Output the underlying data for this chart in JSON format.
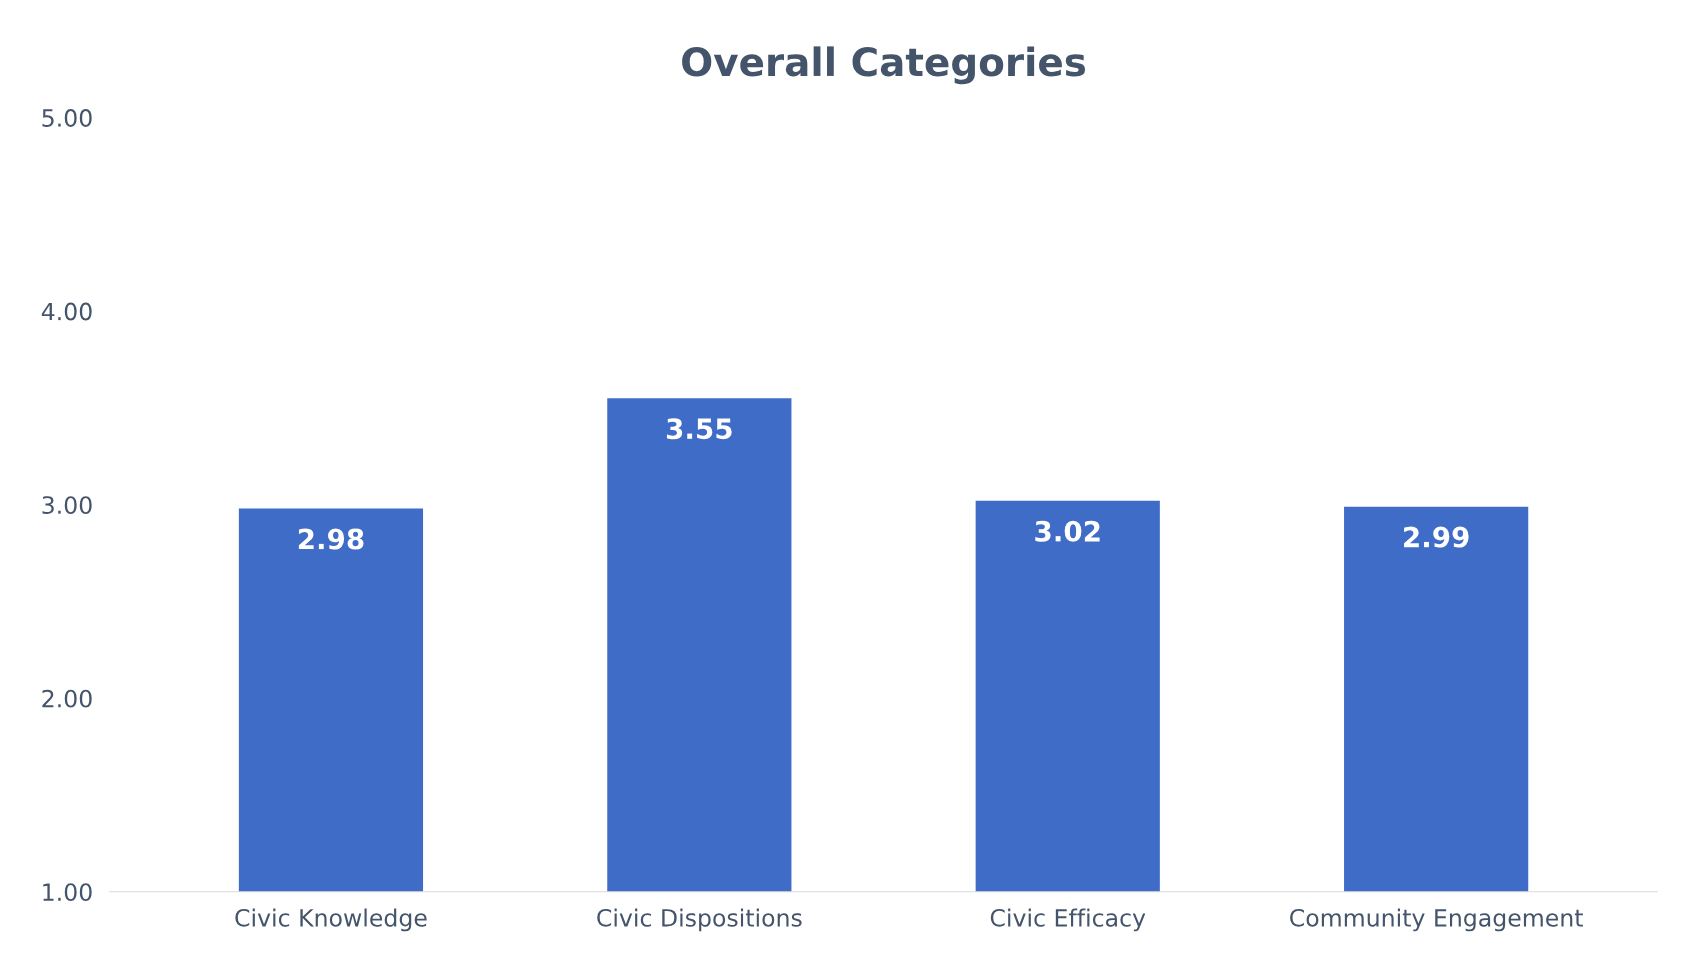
{
  "chart_data": {
    "type": "bar",
    "title": "Overall Categories",
    "categories": [
      "Civic Knowledge",
      "Civic Dispositions",
      "Civic Efficacy",
      "Community Engagement"
    ],
    "values": [
      2.98,
      3.55,
      3.02,
      2.99
    ],
    "color": "#3f6cc6",
    "ylim": [
      1,
      5
    ],
    "yticks": [
      {
        "value": 1,
        "label": "1.00"
      },
      {
        "value": 2,
        "label": "2.00"
      },
      {
        "value": 3,
        "label": "3.00"
      },
      {
        "value": 4,
        "label": "4.00"
      },
      {
        "value": 5,
        "label": "5.00"
      }
    ],
    "grid": false,
    "data_labels": true
  }
}
